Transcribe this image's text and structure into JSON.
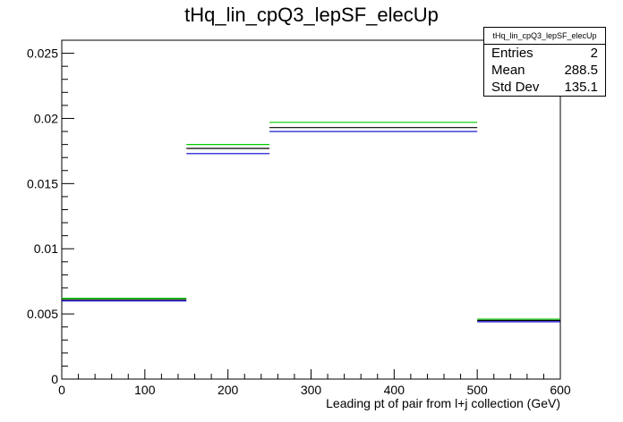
{
  "chart_data": {
    "type": "histogram",
    "title": "tHq_lin_cpQ3_lepSF_elecUp",
    "xlabel": "Leading pt of pair from l+j collection (GeV)",
    "ylabel": "",
    "xlim": [
      0,
      600
    ],
    "ylim": [
      0,
      0.026
    ],
    "x_ticks": [
      "0",
      "100",
      "200",
      "300",
      "400",
      "500",
      "600"
    ],
    "y_ticks": [
      "0",
      "0.005",
      "0.01",
      "0.015",
      "0.02",
      "0.025"
    ],
    "bins": [
      {
        "xlow": 0,
        "xhigh": 150
      },
      {
        "xlow": 150,
        "xhigh": 250
      },
      {
        "xlow": 250,
        "xhigh": 500
      },
      {
        "xlow": 500,
        "xhigh": 600
      }
    ],
    "series": [
      {
        "color": "#00cc00",
        "values": [
          0.0062,
          0.018,
          0.0197,
          0.0046
        ]
      },
      {
        "color": "#000000",
        "values": [
          0.0061,
          0.0177,
          0.0193,
          0.0045
        ]
      },
      {
        "color": "#0000cc",
        "values": [
          0.006,
          0.0173,
          0.019,
          0.0044
        ]
      }
    ],
    "grid": false
  },
  "stats": {
    "name": "tHq_lin_cpQ3_lepSF_elecUp",
    "rows": [
      {
        "label": "Entries",
        "value": "2"
      },
      {
        "label": "Mean",
        "value": "288.5"
      },
      {
        "label": "Std Dev",
        "value": "135.1"
      }
    ]
  }
}
